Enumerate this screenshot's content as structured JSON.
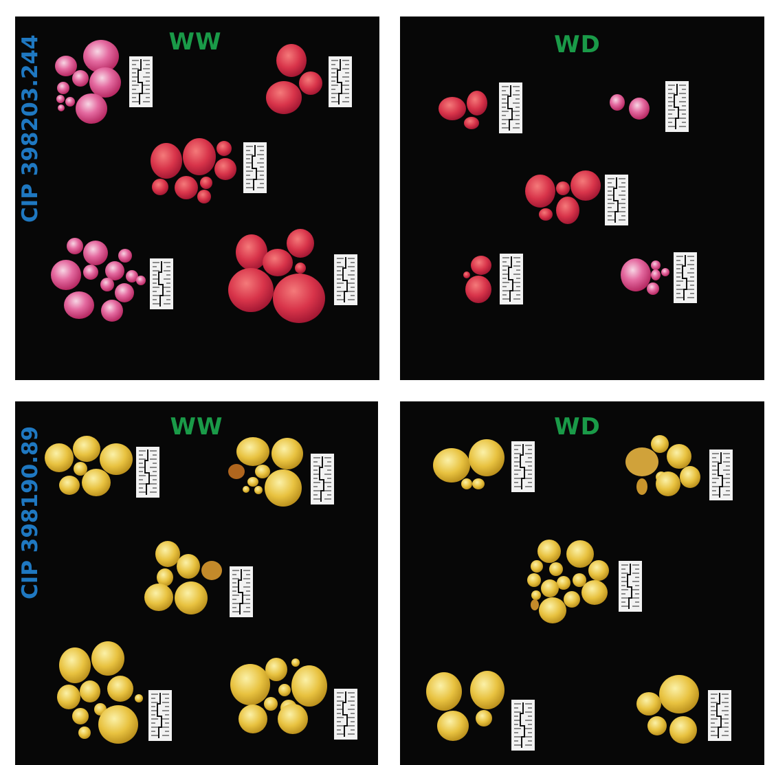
{
  "clone_labels": {
    "top": "CIP 398203.244",
    "bottom": "CIP 398190.89"
  },
  "panels": {
    "top_left": {
      "condition": "WW"
    },
    "top_right": {
      "condition": "WD"
    },
    "bottom_left": {
      "condition": "WW"
    },
    "bottom_right": {
      "condition": "WD"
    }
  },
  "colors": {
    "background": "#070707",
    "condition_label": "#1a9a48",
    "clone_label": "#1f78c1",
    "tuber_red": "#d8344a",
    "tuber_pink": "#e04a8c",
    "tuber_yellow": "#e8c240",
    "scale_bar": "#f2f2f2"
  },
  "icons": {
    "scale_bar": "ruler-scale-icon",
    "tuber": "potato-tuber-icon"
  }
}
